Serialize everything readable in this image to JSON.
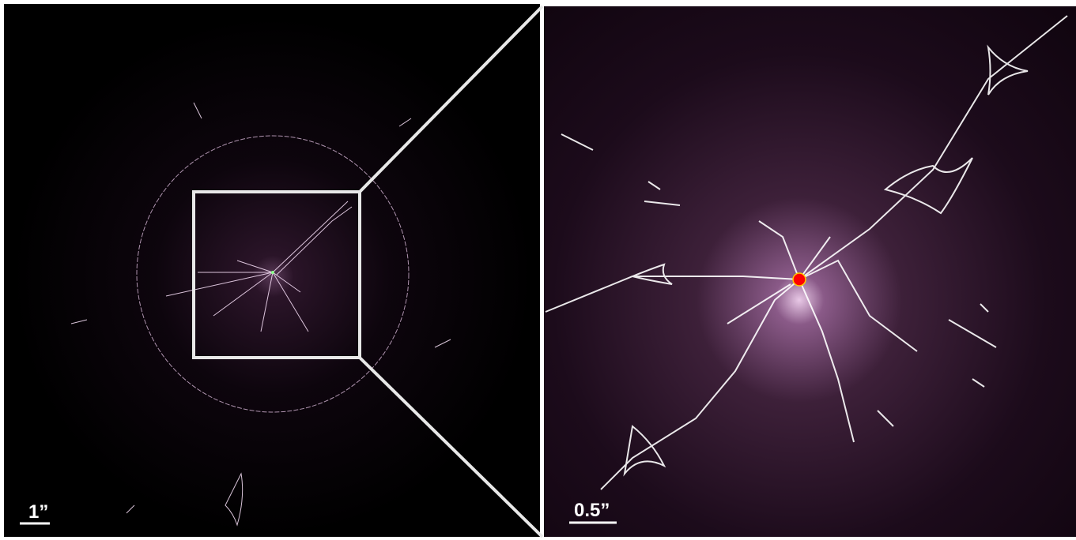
{
  "panels": [
    {
      "scale_label": "1”"
    },
    {
      "scale_label": "0.5”"
    }
  ]
}
